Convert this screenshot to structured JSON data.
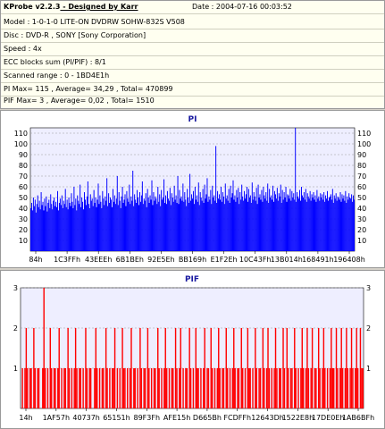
{
  "info": {
    "app_title": "KProbe v2.2.3",
    "designer": " - Designed by Karr",
    "date": "Date : 2004-07-16 00:03:52",
    "lines": [
      "Model : 1-0-1-0 LITE-ON DVDRW SOHW-832S  V508",
      "Disc : DVD-R , SONY [Sony Corporation]",
      "Speed : 4x",
      "ECC blocks sum (PI/PIF) : 8/1",
      "Scanned range : 0 - 1BD4E1h",
      "PI Max= 115 , Average= 34,29 , Total= 470899",
      "PIF Max= 3 , Average= 0,02 , Total= 1510"
    ]
  },
  "colors": {
    "panel_bg": "#d4d0c8",
    "info_bg": "#fffff0",
    "plot_bg": "#eeeeff",
    "pi_bar": "#0000ff",
    "pif_bar": "#ff0000",
    "title": "#1a1aa0"
  },
  "chart_data": [
    {
      "type": "bar",
      "title": "PI",
      "ylim": [
        0,
        115
      ],
      "yticks": [
        10,
        20,
        30,
        40,
        50,
        60,
        70,
        80,
        90,
        100,
        110
      ],
      "xticks": [
        "84h",
        "1C3FFh",
        "43EEEh",
        "6B1BEh",
        "92E5Eh",
        "BB169h",
        "E1F2Eh",
        "10C43Fh",
        "13B014h",
        "168491h",
        "196408h"
      ],
      "average": 34.29,
      "max": 115,
      "grid": true,
      "series": [
        {
          "values": [
            40,
            45,
            38,
            50,
            42,
            48,
            36,
            44,
            52,
            41,
            47,
            39,
            55,
            43,
            46,
            38,
            49,
            42,
            51,
            37,
            45,
            48,
            40,
            53,
            44,
            39,
            47,
            50,
            42,
            46,
            41,
            56,
            38,
            45,
            49,
            43,
            52,
            40,
            47,
            44,
            58,
            41,
            48,
            39,
            50,
            45,
            42,
            54,
            46,
            40,
            60,
            43,
            49,
            38,
            52,
            47,
            44,
            62,
            41,
            50,
            46,
            39,
            55,
            48,
            43,
            51,
            65,
            44,
            40,
            53,
            47,
            49,
            42,
            57,
            45,
            50,
            41,
            48,
            63,
            44,
            52,
            46,
            40,
            56,
            49,
            43,
            51,
            47,
            68,
            42,
            54,
            45,
            50,
            48,
            41,
            58,
            46,
            52,
            44,
            49,
            70,
            43,
            55,
            47,
            40,
            51,
            60,
            45,
            48,
            53,
            42,
            56,
            49,
            46,
            62,
            44,
            51,
            47,
            75,
            42,
            53,
            48,
            45,
            57,
            50,
            43,
            55,
            46,
            52,
            65,
            44,
            49,
            47,
            54,
            41,
            58,
            50,
            45,
            52,
            48,
            66,
            43,
            55,
            47,
            51,
            49,
            44,
            60,
            46,
            53,
            42,
            57,
            48,
            50,
            67,
            45,
            52,
            44,
            56,
            49,
            47,
            59,
            43,
            54,
            50,
            46,
            61,
            48,
            52,
            45,
            70,
            44,
            57,
            49,
            51,
            47,
            63,
            46,
            55,
            48,
            42,
            58,
            50,
            45,
            72,
            47,
            53,
            49,
            56,
            44,
            60,
            48,
            52,
            46,
            64,
            43,
            55,
            50,
            47,
            58,
            45,
            62,
            49,
            53,
            68,
            46,
            51,
            48,
            57,
            44,
            61,
            50,
            52,
            47,
            98,
            45,
            56,
            49,
            53,
            48,
            60,
            46,
            55,
            51,
            44,
            63,
            49,
            52,
            47,
            58,
            45,
            61,
            50,
            54,
            66,
            48,
            52,
            46,
            57,
            50,
            59,
            44,
            55,
            48,
            62,
            51,
            47,
            56,
            49,
            53,
            60,
            46,
            58,
            50,
            52,
            45,
            64,
            48,
            55,
            51,
            47,
            59,
            44,
            62,
            50,
            53,
            48,
            57,
            46,
            60,
            52,
            49,
            55,
            47,
            63,
            45,
            58,
            50,
            52,
            48,
            61,
            46,
            56,
            53,
            49,
            59,
            47,
            54,
            51,
            62,
            45,
            57,
            48,
            55,
            50,
            60,
            46,
            53,
            52,
            49,
            58,
            47,
            56,
            50,
            54,
            48,
            115,
            46,
            55,
            51,
            49,
            57,
            47,
            60,
            52,
            50,
            55,
            48,
            58,
            46,
            54,
            51,
            49,
            56,
            47,
            53,
            50,
            55,
            48,
            52,
            46,
            57,
            49,
            51,
            47,
            54,
            50,
            53,
            48,
            55,
            46,
            52,
            49,
            56,
            47,
            50,
            51,
            53,
            48,
            58,
            45,
            52,
            49,
            54,
            47,
            51,
            50,
            48,
            55,
            46,
            53,
            49,
            52,
            47,
            56,
            45,
            51,
            48,
            54,
            50,
            49,
            53,
            46,
            52,
            48
          ]
        }
      ]
    },
    {
      "type": "bar",
      "title": "PIF",
      "ylim": [
        0,
        3
      ],
      "yticks": [
        1,
        2,
        3
      ],
      "xticks": [
        "14h",
        "1AF57h",
        "40737h",
        "65151h",
        "89F3Fh",
        "AFE15h",
        "D665Bh",
        "FCDFFh",
        "12643Dh",
        "1522E8h",
        "17DE0Eh",
        "1AB6BFh"
      ],
      "grid": true,
      "series": [
        {
          "values": [
            0,
            1,
            0,
            1,
            2,
            1,
            0,
            1,
            1,
            0,
            2,
            1,
            0,
            1,
            1,
            0,
            0,
            1,
            3,
            1,
            0,
            1,
            0,
            2,
            1,
            0,
            1,
            1,
            0,
            1,
            2,
            0,
            1,
            0,
            1,
            1,
            0,
            2,
            1,
            0,
            1,
            0,
            1,
            2,
            1,
            0,
            1,
            1,
            0,
            1,
            0,
            2,
            1,
            0,
            1,
            1,
            0,
            0,
            1,
            2,
            1,
            0,
            1,
            0,
            1,
            1,
            0,
            2,
            1,
            0,
            1,
            0,
            1,
            1,
            2,
            0,
            1,
            0,
            1,
            0,
            2,
            1,
            1,
            0,
            1,
            0,
            1,
            2,
            0,
            1,
            1,
            0,
            1,
            0,
            2,
            1,
            0,
            1,
            1,
            0,
            2,
            1,
            0,
            1,
            0,
            1,
            1,
            0,
            2,
            1,
            0,
            1,
            0,
            1,
            2,
            1,
            0,
            1,
            0,
            1,
            1,
            0,
            2,
            1,
            0,
            1,
            2,
            0,
            1,
            0,
            1,
            1,
            0,
            2,
            1,
            0,
            1,
            0,
            2,
            1,
            1,
            0,
            1,
            0,
            1,
            2,
            0,
            1,
            1,
            0,
            2,
            1,
            0,
            1,
            0,
            1,
            2,
            1,
            0,
            1,
            1,
            0,
            2,
            1,
            0,
            1,
            0,
            1,
            2,
            1,
            0,
            1,
            1,
            0,
            2,
            1,
            0,
            1,
            0,
            2,
            1,
            1,
            0,
            1,
            0,
            2,
            1,
            0,
            1,
            1,
            0,
            2,
            1,
            0,
            1,
            2,
            1,
            0,
            1,
            0,
            1,
            2,
            1,
            0,
            1,
            1,
            0,
            2,
            1,
            0,
            2,
            1,
            0,
            1,
            1,
            0,
            2,
            1,
            0,
            1,
            0,
            1,
            2,
            1,
            0,
            1,
            2,
            1,
            0,
            1,
            2,
            0,
            1,
            1,
            0,
            2,
            1,
            0,
            1,
            2,
            1,
            0,
            1,
            0,
            1,
            2,
            1,
            1,
            0,
            2,
            1,
            0,
            1,
            2,
            1,
            0,
            1,
            2,
            1,
            0,
            1,
            2,
            1,
            0,
            1,
            2,
            1,
            0,
            2,
            1,
            1
          ]
        }
      ]
    }
  ]
}
